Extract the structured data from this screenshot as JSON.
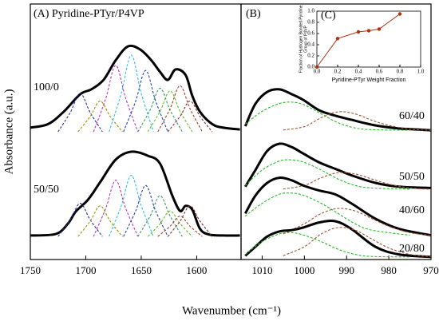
{
  "figure": {
    "xlabel": "Wavenumber (cm⁻¹)",
    "ylabel": "Absorbance (a.u.)"
  },
  "chart_data": [
    {
      "type": "line",
      "title": "(A) Pyridine-PTyr/P4VP",
      "xlim": [
        1750,
        1560
      ],
      "xticks": [
        1750,
        1700,
        1650,
        1600
      ],
      "ylim": [
        0,
        100
      ],
      "series": [
        {
          "name": "100/0",
          "color": "#000000",
          "x": [
            1750,
            1734,
            1720,
            1705,
            1695,
            1684,
            1673,
            1662,
            1651,
            1641,
            1633,
            1626,
            1619,
            1610,
            1604,
            1597,
            1586,
            1576,
            1561
          ],
          "values": [
            51.6,
            53,
            57.8,
            64.7,
            66.6,
            70.3,
            78,
            83.4,
            82.2,
            78,
            73.4,
            70.3,
            74.4,
            72.2,
            64.1,
            57.8,
            53,
            51.6,
            50.9
          ]
        },
        {
          "color": "#1f2f9f",
          "dashed": true,
          "x": [
            1725,
            1714,
            1705,
            1696,
            1685
          ],
          "values": [
            50,
            57.5,
            65,
            57.5,
            50
          ]
        },
        {
          "color": "#a08f00",
          "dashed": true,
          "x": [
            1707,
            1696,
            1687,
            1678,
            1667
          ],
          "values": [
            50,
            56,
            62,
            56,
            50
          ]
        },
        {
          "color": "#c030c0",
          "dashed": true,
          "x": [
            1693,
            1682,
            1673,
            1664,
            1653
          ],
          "values": [
            50,
            63,
            76,
            63,
            50
          ]
        },
        {
          "color": "#30c0e0",
          "dashed": true,
          "x": [
            1679,
            1668,
            1659,
            1650,
            1639
          ],
          "values": [
            50,
            65,
            80,
            65,
            50
          ]
        },
        {
          "color": "#2040b0",
          "dashed": true,
          "x": [
            1666,
            1655,
            1646,
            1637,
            1626
          ],
          "values": [
            50,
            62,
            74,
            62,
            50
          ]
        },
        {
          "color": "#30a060",
          "dashed": true,
          "x": [
            1653,
            1642,
            1633,
            1624,
            1613
          ],
          "values": [
            50,
            58.5,
            67,
            58.5,
            50
          ]
        },
        {
          "color": "#60c020",
          "dashed": true,
          "x": [
            1644,
            1633,
            1624,
            1615,
            1604
          ],
          "values": [
            50,
            58,
            66,
            58,
            50
          ]
        },
        {
          "color": "#a04020",
          "dashed": true,
          "x": [
            1635,
            1624,
            1615,
            1606,
            1595
          ],
          "values": [
            50,
            59,
            68,
            59,
            50
          ]
        },
        {
          "color": "#803030",
          "dashed": true,
          "x": [
            1626,
            1615,
            1606,
            1597,
            1586
          ],
          "values": [
            50,
            56,
            62,
            56,
            50
          ]
        },
        {
          "name": "50/50",
          "color": "#000000",
          "x": [
            1750,
            1727,
            1716,
            1709,
            1698,
            1687,
            1673,
            1659,
            1644,
            1633,
            1622,
            1615,
            1610,
            1604,
            1597,
            1589,
            1576,
            1561
          ],
          "values": [
            9.4,
            10,
            14.1,
            18.8,
            23.4,
            30.3,
            39.1,
            42.2,
            40.6,
            37.5,
            25,
            19,
            21,
            19.5,
            12,
            9.8,
            9.4,
            9.4
          ]
        },
        {
          "color": "#1f2f9f",
          "dashed": true,
          "x": [
            1725,
            1714,
            1705,
            1696,
            1685
          ],
          "values": [
            9,
            15.5,
            22,
            15.5,
            9
          ]
        },
        {
          "color": "#a08f00",
          "dashed": true,
          "x": [
            1707,
            1696,
            1687,
            1678,
            1667
          ],
          "values": [
            9,
            15,
            21,
            15,
            9
          ]
        },
        {
          "color": "#c030c0",
          "dashed": true,
          "x": [
            1693,
            1682,
            1673,
            1664,
            1653
          ],
          "values": [
            9,
            20,
            31,
            20,
            9
          ]
        },
        {
          "color": "#30c0e0",
          "dashed": true,
          "x": [
            1679,
            1668,
            1659,
            1650,
            1639
          ],
          "values": [
            9,
            21,
            33,
            21,
            9
          ]
        },
        {
          "color": "#2040b0",
          "dashed": true,
          "x": [
            1666,
            1655,
            1646,
            1637,
            1626
          ],
          "values": [
            9,
            19,
            29,
            19,
            9
          ]
        },
        {
          "color": "#30a060",
          "dashed": true,
          "x": [
            1653,
            1642,
            1633,
            1624,
            1613
          ],
          "values": [
            9,
            17,
            25,
            17,
            9
          ]
        },
        {
          "color": "#60c020",
          "dashed": true,
          "x": [
            1644,
            1633,
            1624,
            1615,
            1604
          ],
          "values": [
            9,
            14,
            19,
            14,
            9
          ]
        },
        {
          "color": "#a04020",
          "dashed": true,
          "x": [
            1635,
            1624,
            1615,
            1606,
            1595
          ],
          "values": [
            9,
            13,
            17,
            13,
            9
          ]
        },
        {
          "color": "#803030",
          "dashed": true,
          "x": [
            1626,
            1615,
            1606,
            1597,
            1586
          ],
          "values": [
            9,
            15,
            21,
            15,
            9
          ]
        }
      ]
    },
    {
      "type": "line",
      "title": "(B)",
      "xlim": [
        1015,
        970
      ],
      "xticks": [
        1010,
        1000,
        990,
        980,
        970
      ],
      "ylim": [
        0,
        100
      ],
      "series": [
        {
          "name": "60/40",
          "color": "#000000",
          "x": [
            1014,
            1011.6,
            1008.8,
            1005.9,
            1003,
            1000.3,
            996.5,
            992.7,
            988.9,
            983.2,
            977.6,
            970
          ],
          "values": [
            52.2,
            60.9,
            65.6,
            66.6,
            64.7,
            62.5,
            58.4,
            56.3,
            54.7,
            52.5,
            51.3,
            50.6
          ]
        },
        {
          "color": "#22bb22",
          "dashed": true,
          "x": [
            1014,
            1010,
            1006,
            1003,
            1000,
            996,
            992,
            988,
            984,
            975
          ],
          "values": [
            53,
            58,
            61,
            61.6,
            60.5,
            57,
            53.5,
            51.5,
            50.8,
            50.6
          ]
        },
        {
          "color": "#a0522d",
          "dashed": true,
          "x": [
            1005,
            1000,
            996,
            992,
            988,
            984,
            980,
            975,
            970
          ],
          "values": [
            50.7,
            52,
            55.5,
            57.8,
            57,
            54.5,
            52.5,
            51,
            50.6
          ]
        },
        {
          "name": "50/50",
          "color": "#000000",
          "x": [
            1014,
            1011.6,
            1008.8,
            1005.9,
            1003,
            1000.3,
            996.5,
            992.7,
            988.9,
            983.2,
            977.6,
            970
          ],
          "values": [
            28.5,
            35,
            42.5,
            45.3,
            44,
            41.5,
            38,
            35.5,
            33,
            30,
            28.5,
            28
          ]
        },
        {
          "color": "#22bb22",
          "dashed": true,
          "x": [
            1014,
            1010,
            1006,
            1003,
            1000,
            996,
            992,
            988,
            984,
            975
          ],
          "values": [
            29,
            35,
            38.5,
            39,
            38,
            35,
            31.5,
            29,
            28,
            27.5
          ]
        },
        {
          "color": "#a0522d",
          "dashed": true,
          "x": [
            1005,
            1000,
            996,
            992,
            988,
            984,
            980,
            975,
            970
          ],
          "values": [
            27.6,
            29,
            32,
            34,
            33.5,
            31.5,
            29.5,
            28,
            27.5
          ]
        },
        {
          "name": "40/60",
          "color": "#000000",
          "x": [
            1014,
            1011.6,
            1008.8,
            1005.9,
            1003,
            1000.3,
            996.5,
            992.7,
            988.9,
            983.2,
            977.6,
            970
          ],
          "values": [
            18,
            25,
            30,
            32,
            31,
            29,
            27,
            25.5,
            22,
            16,
            12,
            9.5
          ]
        },
        {
          "color": "#22bb22",
          "dashed": true,
          "x": [
            1014,
            1010,
            1006,
            1003,
            1000,
            996,
            992,
            988,
            984,
            975
          ],
          "values": [
            17,
            22,
            25.5,
            26,
            25,
            22,
            18,
            14,
            11.5,
            9.5
          ]
        },
        {
          "color": "#a0522d",
          "dashed": true,
          "x": [
            1005,
            1000,
            996,
            992,
            988,
            984,
            980,
            975,
            970
          ],
          "values": [
            10,
            14,
            18,
            20,
            19,
            16,
            13,
            10.5,
            9.5
          ]
        },
        {
          "name": "20/80",
          "color": "#000000",
          "x": [
            1014,
            1011.6,
            1008.8,
            1005.9,
            1003,
            1000.3,
            996.5,
            992.7,
            988.9,
            983.2,
            977.6,
            970
          ],
          "values": [
            1.5,
            5,
            9,
            11,
            11.5,
            12.5,
            14.5,
            15,
            12,
            5,
            2,
            1
          ]
        },
        {
          "color": "#22bb22",
          "dashed": true,
          "x": [
            1014,
            1010,
            1006,
            1003,
            1000,
            996,
            992,
            988,
            984,
            975
          ],
          "values": [
            2,
            7,
            10,
            10.5,
            9.5,
            7,
            4,
            2,
            1.2,
            1
          ]
        },
        {
          "color": "#a0522d",
          "dashed": true,
          "x": [
            1005,
            1000,
            996,
            992,
            988,
            984,
            980,
            975,
            970
          ],
          "values": [
            1.5,
            5,
            10,
            12.5,
            11.5,
            8,
            4.5,
            2,
            1
          ]
        }
      ]
    },
    {
      "type": "line",
      "markers": true,
      "title": "(C)",
      "xlabel": "Pyridine-PTyr Weight Fraction",
      "ylabel": [
        "Fraction of Hydrogen Bonded Pyridine",
        "Group of P4VP"
      ],
      "xlim": [
        0,
        1
      ],
      "xticks": [
        {
          "value": 0,
          "label": "0.0"
        },
        0.2,
        0.4,
        0.6,
        0.8,
        {
          "value": 1,
          "label": "1.0"
        }
      ],
      "ylim": [
        0,
        1
      ],
      "yticks": [
        {
          "value": 0,
          "label": "0.0"
        },
        0.2,
        0.4,
        0.6,
        0.8,
        {
          "value": 1,
          "label": "1.0"
        }
      ],
      "series": [
        {
          "color": "#b03010",
          "x": [
            0,
            0.2,
            0.4,
            0.5,
            0.6,
            0.8
          ],
          "values": [
            0,
            0.51,
            0.63,
            0.65,
            0.68,
            0.95
          ]
        }
      ]
    }
  ]
}
